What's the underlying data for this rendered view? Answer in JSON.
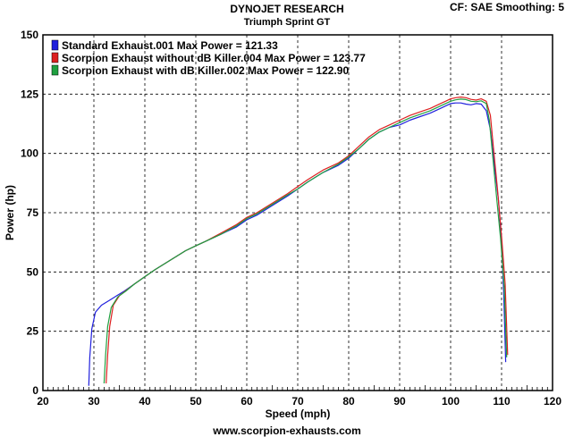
{
  "header": {
    "title": "DYNOJET RESEARCH",
    "subtitle": "Triumph Sprint GT",
    "cf_label": "CF: SAE  Smoothing: 5"
  },
  "footer": {
    "url": "www.scorpion-exhausts.com"
  },
  "chart_data": {
    "type": "line",
    "title": "DYNOJET RESEARCH",
    "subtitle": "Triumph Sprint GT",
    "xlabel": "Speed (mph)",
    "ylabel": "Power (hp)",
    "xlim": [
      20,
      120
    ],
    "ylim": [
      0,
      150
    ],
    "x_ticks": [
      20,
      30,
      40,
      50,
      60,
      70,
      80,
      90,
      100,
      110,
      120
    ],
    "y_ticks": [
      0,
      25,
      50,
      75,
      100,
      125,
      150
    ],
    "grid": true,
    "legend_position": "top-left",
    "series": [
      {
        "name": "Standard Exhaust.001 Max Power = 121.33",
        "color": "#2020dd",
        "points": [
          [
            29.0,
            2
          ],
          [
            29.2,
            14
          ],
          [
            29.6,
            26
          ],
          [
            30.3,
            33
          ],
          [
            31.5,
            36
          ],
          [
            33,
            38
          ],
          [
            34.5,
            40
          ],
          [
            36,
            42
          ],
          [
            38,
            45
          ],
          [
            40,
            48
          ],
          [
            42,
            51
          ],
          [
            45,
            55
          ],
          [
            48,
            59
          ],
          [
            50,
            61
          ],
          [
            52,
            63
          ],
          [
            55,
            66
          ],
          [
            58,
            69
          ],
          [
            60,
            72
          ],
          [
            62,
            74
          ],
          [
            65,
            78
          ],
          [
            68,
            82
          ],
          [
            70,
            85
          ],
          [
            72,
            88
          ],
          [
            75,
            92
          ],
          [
            78,
            95
          ],
          [
            80,
            98
          ],
          [
            82,
            102
          ],
          [
            84,
            106
          ],
          [
            86,
            109
          ],
          [
            88,
            111
          ],
          [
            90,
            112
          ],
          [
            92,
            114
          ],
          [
            94,
            115.5
          ],
          [
            96,
            117
          ],
          [
            98,
            119
          ],
          [
            99,
            120
          ],
          [
            100,
            121
          ],
          [
            101,
            121.3
          ],
          [
            102,
            121.3
          ],
          [
            103,
            120.8
          ],
          [
            104,
            120.5
          ],
          [
            105,
            121
          ],
          [
            106,
            120.8
          ],
          [
            107,
            118
          ],
          [
            107.8,
            110
          ],
          [
            108.6,
            95
          ],
          [
            109.4,
            80
          ],
          [
            110.0,
            62
          ],
          [
            110.4,
            42
          ],
          [
            110.8,
            12
          ]
        ]
      },
      {
        "name": "Scorpion Exhaust without dB Killer.004 Max Power = 123.77",
        "color": "#dd2020",
        "points": [
          [
            32.4,
            3
          ],
          [
            32.7,
            15
          ],
          [
            33.1,
            27
          ],
          [
            33.8,
            36
          ],
          [
            35,
            40
          ],
          [
            36.5,
            42.5
          ],
          [
            38,
            45
          ],
          [
            40,
            48
          ],
          [
            42,
            51
          ],
          [
            45,
            55
          ],
          [
            48,
            59
          ],
          [
            50,
            61
          ],
          [
            52,
            63
          ],
          [
            55,
            66.5
          ],
          [
            58,
            70
          ],
          [
            60,
            73
          ],
          [
            62,
            75
          ],
          [
            65,
            79
          ],
          [
            68,
            83
          ],
          [
            70,
            86
          ],
          [
            72,
            89
          ],
          [
            75,
            93
          ],
          [
            78,
            96
          ],
          [
            80,
            99
          ],
          [
            82,
            103
          ],
          [
            84,
            107
          ],
          [
            86,
            110
          ],
          [
            88,
            112
          ],
          [
            90,
            114
          ],
          [
            92,
            116
          ],
          [
            94,
            117.5
          ],
          [
            96,
            119
          ],
          [
            98,
            121
          ],
          [
            99,
            122
          ],
          [
            100,
            123
          ],
          [
            101,
            123.5
          ],
          [
            102,
            123.77
          ],
          [
            103,
            123.5
          ],
          [
            104,
            122.8
          ],
          [
            105,
            122.5
          ],
          [
            106,
            123
          ],
          [
            107,
            122
          ],
          [
            107.8,
            116
          ],
          [
            108.5,
            100
          ],
          [
            109.2,
            85
          ],
          [
            110.0,
            65
          ],
          [
            110.7,
            45
          ],
          [
            111.2,
            15
          ]
        ]
      },
      {
        "name": "Scorpion Exhaust with dB Killer.002 Max Power = 122.90",
        "color": "#20a040",
        "points": [
          [
            32.0,
            3
          ],
          [
            32.3,
            15
          ],
          [
            32.7,
            27
          ],
          [
            33.4,
            35
          ],
          [
            34.7,
            39.5
          ],
          [
            36.3,
            42
          ],
          [
            38,
            45
          ],
          [
            40,
            48
          ],
          [
            42,
            51
          ],
          [
            45,
            55
          ],
          [
            48,
            59
          ],
          [
            50,
            61
          ],
          [
            52,
            63
          ],
          [
            55,
            66
          ],
          [
            58,
            69.5
          ],
          [
            60,
            72.5
          ],
          [
            62,
            74.5
          ],
          [
            65,
            78.5
          ],
          [
            68,
            82.5
          ],
          [
            70,
            85
          ],
          [
            72,
            88
          ],
          [
            75,
            92
          ],
          [
            78,
            95.5
          ],
          [
            80,
            98.5
          ],
          [
            82,
            102
          ],
          [
            84,
            106
          ],
          [
            86,
            109
          ],
          [
            88,
            111
          ],
          [
            90,
            113
          ],
          [
            92,
            115
          ],
          [
            94,
            116.5
          ],
          [
            96,
            118
          ],
          [
            98,
            120
          ],
          [
            99,
            121
          ],
          [
            100,
            122
          ],
          [
            101,
            122.6
          ],
          [
            102,
            122.9
          ],
          [
            103,
            122.7
          ],
          [
            104,
            122
          ],
          [
            105,
            121.8
          ],
          [
            106,
            122.2
          ],
          [
            107,
            121
          ],
          [
            107.6,
            114
          ],
          [
            108.3,
            98
          ],
          [
            109.0,
            82
          ],
          [
            109.8,
            64
          ],
          [
            110.5,
            44
          ],
          [
            111.0,
            14
          ]
        ]
      }
    ]
  }
}
